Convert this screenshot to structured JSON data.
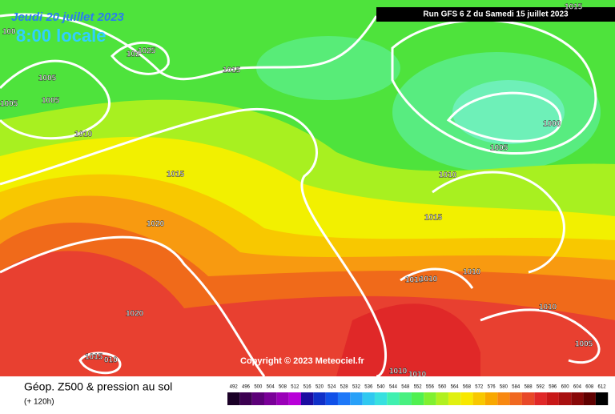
{
  "header": {
    "date": "Jeudi 20 juillet 2023",
    "time": "8:00 locale",
    "run": "Run GFS 6 Z du Samedi 15 juillet 2023"
  },
  "copyright": "Copyright © 2023 Meteociel.fr",
  "isobar_labels": [
    "100",
    "1025",
    "102",
    "1015",
    "1005",
    "1005",
    "1005",
    "1010",
    "1015",
    "1020",
    "1020",
    "1015",
    "010",
    "1015",
    "1000",
    "1005",
    "1010",
    "1015",
    "1010",
    "1010",
    "1010",
    "1010",
    "1010",
    "1010",
    "1005"
  ],
  "footer": {
    "title": "Géop. Z500 & pression au sol",
    "subtitle": "(+ 120h)"
  },
  "legend": {
    "labels": [
      492,
      496,
      500,
      504,
      508,
      512,
      516,
      520,
      524,
      528,
      532,
      536,
      540,
      544,
      548,
      552,
      556,
      560,
      564,
      568,
      572,
      576,
      580,
      584,
      588,
      592,
      596,
      600,
      604,
      608,
      612
    ],
    "colors": [
      "#1a0026",
      "#3c0050",
      "#5c0078",
      "#7a0098",
      "#9a00b8",
      "#b800d8",
      "#1c0ca0",
      "#1030c8",
      "#1050e8",
      "#1e78f8",
      "#28a0f8",
      "#30c8f0",
      "#38e0e0",
      "#40f0b0",
      "#48f080",
      "#50f050",
      "#80f030",
      "#b0f020",
      "#e0f010",
      "#f8e800",
      "#f8c800",
      "#f8a800",
      "#f88810",
      "#f06820",
      "#e84828",
      "#e02828",
      "#c81818",
      "#a81010",
      "#880808",
      "#600000",
      "#000000"
    ]
  }
}
